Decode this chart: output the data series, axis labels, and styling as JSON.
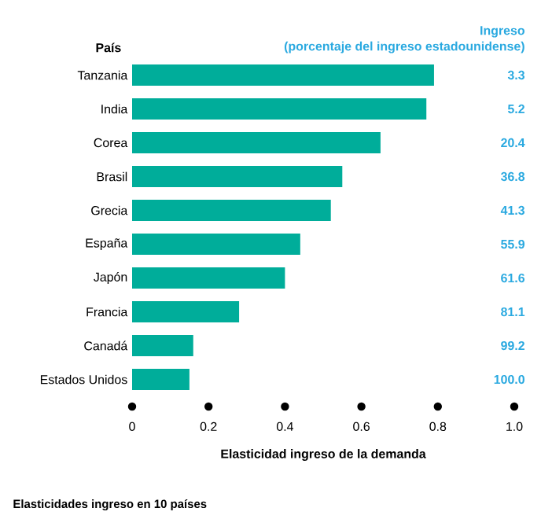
{
  "chart_data": {
    "type": "bar",
    "orientation": "horizontal",
    "title": "Elasticidades ingreso en 10 países",
    "xlabel": "Elasticidad ingreso de la demanda",
    "ylabel": "País",
    "categories": [
      "Tanzania",
      "India",
      "Corea",
      "Brasil",
      "Grecia",
      "España",
      "Japón",
      "Francia",
      "Canadá",
      "Estados Unidos"
    ],
    "values": [
      0.79,
      0.77,
      0.65,
      0.55,
      0.52,
      0.44,
      0.4,
      0.28,
      0.16,
      0.15
    ],
    "color": "#00ad9a",
    "xlim": [
      0,
      1
    ],
    "xticks": [
      0,
      0.2,
      0.4,
      0.6,
      0.8,
      {
        "value": 1,
        "label": "1.0"
      }
    ],
    "grid": false,
    "annotations": [
      "Ingreso",
      "(porcentaje del ingreso estadounidense)",
      "3.3",
      "5.2",
      "20.4",
      "36.8",
      "41.3",
      "55.9",
      "61.6",
      "81.1",
      "99.2",
      "100.0"
    ]
  }
}
